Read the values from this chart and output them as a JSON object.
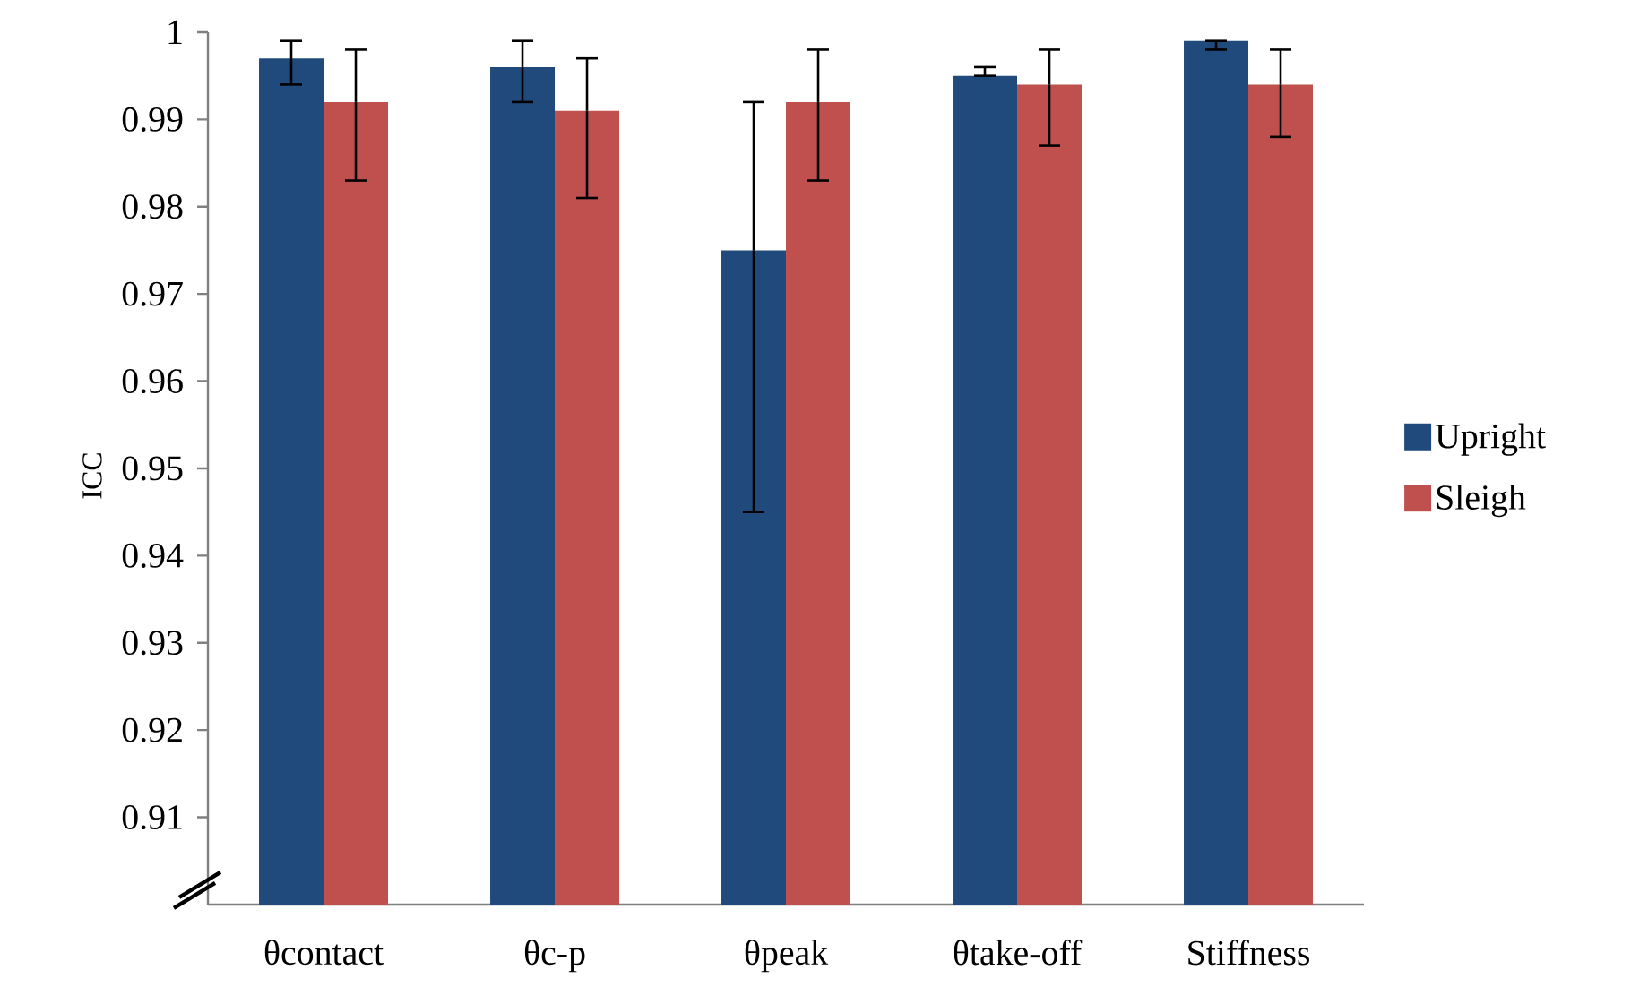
{
  "chart_data": {
    "type": "bar",
    "ylabel": "ICC",
    "categories": [
      "θcontact",
      "θc-p",
      "θpeak",
      "θtake-off",
      "Stiffness"
    ],
    "series": [
      {
        "name": "Upright",
        "color": "#214a7c",
        "values": [
          0.997,
          0.996,
          0.975,
          0.995,
          0.999
        ],
        "errors": [
          [
            0.994,
            0.999
          ],
          [
            0.992,
            0.999
          ],
          [
            0.945,
            0.992
          ],
          [
            0.995,
            0.996
          ],
          [
            0.998,
            0.999
          ]
        ]
      },
      {
        "name": "Sleigh",
        "color": "#c0504d",
        "values": [
          0.992,
          0.991,
          0.992,
          0.994,
          0.994
        ],
        "errors": [
          [
            0.983,
            0.998
          ],
          [
            0.981,
            0.997
          ],
          [
            0.983,
            0.998
          ],
          [
            0.987,
            0.998
          ],
          [
            0.988,
            0.998
          ]
        ]
      }
    ],
    "ylim": [
      0.9,
      1
    ],
    "yticks": [
      0.91,
      0.92,
      0.93,
      0.94,
      0.95,
      0.96,
      0.97,
      0.98,
      0.99,
      1
    ],
    "grid": false,
    "legend": "right"
  }
}
